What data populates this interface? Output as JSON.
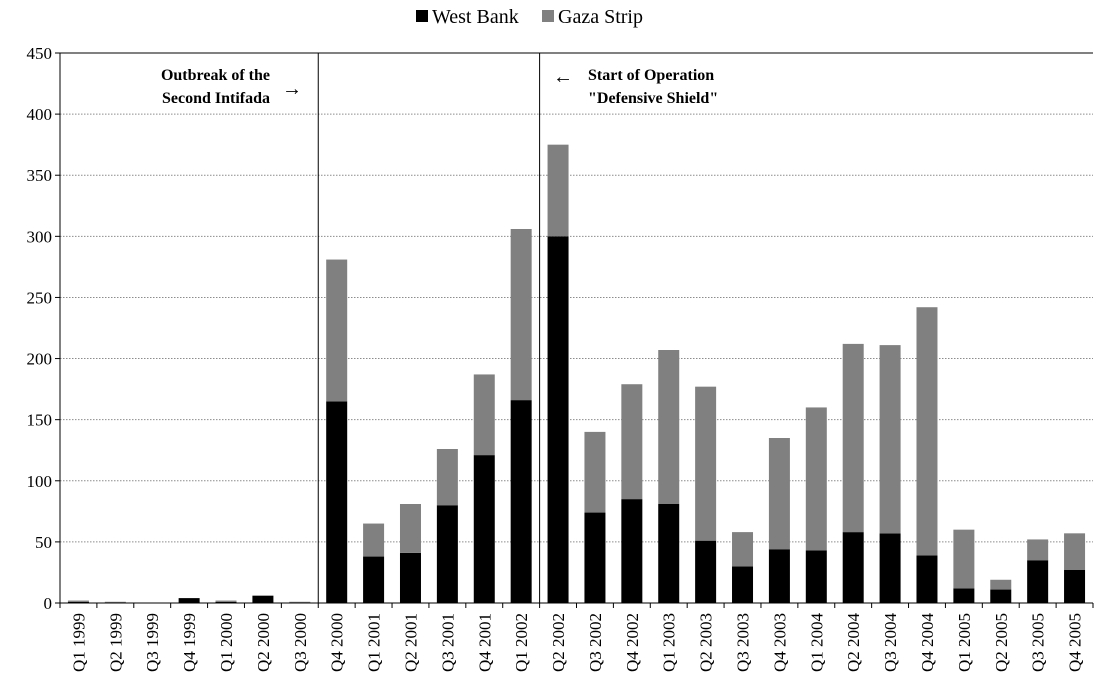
{
  "chart_data": {
    "type": "bar",
    "stacked": true,
    "categories": [
      "Q1 1999",
      "Q2 1999",
      "Q3 1999",
      "Q4 1999",
      "Q1 2000",
      "Q2 2000",
      "Q3 2000",
      "Q4 2000",
      "Q1 2001",
      "Q2 2001",
      "Q3 2001",
      "Q4 2001",
      "Q1 2002",
      "Q2 2002",
      "Q3 2002",
      "Q4 2002",
      "Q1 2003",
      "Q2 2003",
      "Q3 2003",
      "Q4 2003",
      "Q1 2004",
      "Q2 2004",
      "Q3 2004",
      "Q4 2004",
      "Q1 2005",
      "Q2 2005",
      "Q3 2005",
      "Q4 2005"
    ],
    "series": [
      {
        "name": "West Bank",
        "color": "#000000",
        "values": [
          1,
          0,
          0,
          4,
          1,
          6,
          0,
          165,
          38,
          41,
          80,
          121,
          166,
          300,
          74,
          85,
          81,
          51,
          30,
          44,
          43,
          58,
          57,
          39,
          12,
          11,
          35,
          27
        ]
      },
      {
        "name": "Gaza Strip",
        "color": "#808080",
        "values": [
          1,
          1,
          0,
          0,
          1,
          0,
          1,
          116,
          27,
          40,
          46,
          66,
          140,
          75,
          66,
          94,
          126,
          126,
          28,
          91,
          117,
          154,
          154,
          203,
          48,
          8,
          17,
          30
        ]
      }
    ],
    "ylim": [
      0,
      450
    ],
    "yticks": [
      0,
      50,
      100,
      150,
      200,
      250,
      300,
      350,
      400,
      450
    ],
    "grid": true,
    "legend": "top-center",
    "annotations": [
      {
        "lines": [
          "Outbreak of the",
          "Second Intifada"
        ],
        "arrow": "→"
      },
      {
        "lines": [
          "Start of Operation",
          "\"Defensive Shield\""
        ],
        "arrow": "←"
      }
    ]
  }
}
